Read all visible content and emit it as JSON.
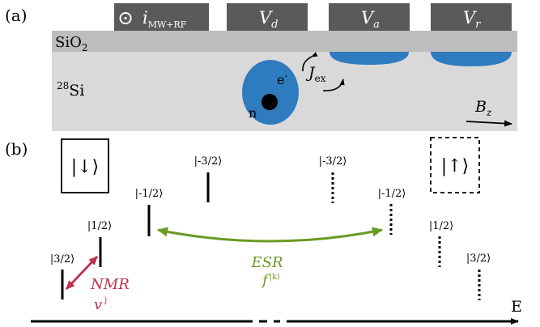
{
  "panel_a": {
    "label": "(a)",
    "gates": {
      "mw_rf": {
        "symbol": "⊙",
        "current": "i",
        "subscript": "MW+RF"
      },
      "d": {
        "base": "V",
        "subscript": "d"
      },
      "a": {
        "base": "V",
        "subscript": "a"
      },
      "r": {
        "base": "V",
        "subscript": "r"
      }
    },
    "oxide": {
      "base": "SiO",
      "subscript": "2"
    },
    "substrate": {
      "isotope": "28",
      "element": "Si"
    },
    "electron_label": "e",
    "electron_charge": "-",
    "nucleus_label": "n",
    "exchange": {
      "base": "J",
      "subscript": "ex"
    },
    "field": {
      "base": "B",
      "subscript": "z"
    },
    "colors": {
      "gate": "#5a5a5a",
      "oxide": "#bdbdbd",
      "substrate": "#d9d9d9",
      "dot": "#2e7bbf"
    }
  },
  "panel_b": {
    "label": "(b)",
    "electron_down": "|↓⟩",
    "electron_up": "|↑⟩",
    "left_levels": [
      "|3/2⟩",
      "|1/2⟩",
      "|-1/2⟩",
      "|-3/2⟩"
    ],
    "right_levels": [
      "|-3/2⟩",
      "|-1/2⟩",
      "|1/2⟩",
      "|3/2⟩"
    ],
    "esr": {
      "label": "ESR",
      "freq": "f",
      "freq_sup": "|k⟩"
    },
    "nmr": {
      "label": "NMR",
      "freq": "v",
      "freq_sup": "j"
    },
    "energy_axis": "E",
    "colors": {
      "esr": "#6a9a23",
      "nmr": "#c0304a"
    }
  }
}
